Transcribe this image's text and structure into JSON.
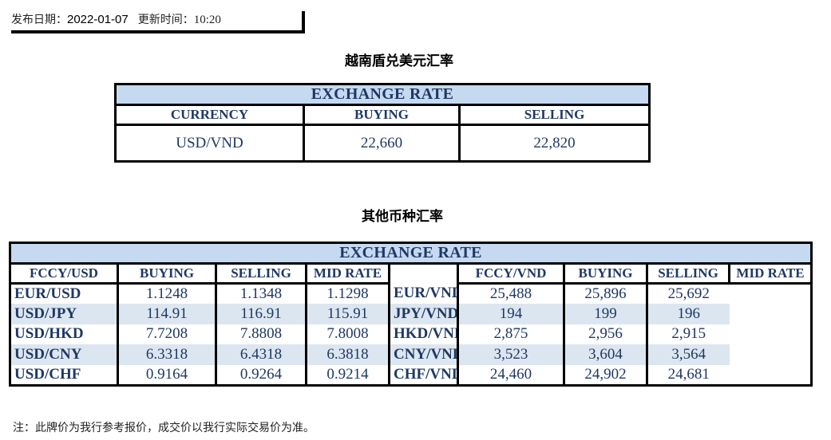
{
  "publish": {
    "date_label": "发布日期：",
    "date": "2022-01-07",
    "time_label": "更新时间：",
    "time": "10:20"
  },
  "section1": {
    "heading": "越南盾兑美元汇率",
    "title": "EXCHANGE RATE",
    "headers": [
      "CURRENCY",
      "BUYING",
      "SELLING"
    ],
    "row": [
      "USD/VND",
      "22,660",
      "22,820"
    ]
  },
  "section2": {
    "heading": "其他币种汇率",
    "title": "EXCHANGE  RATE",
    "headers_usd": [
      "FCCY/USD",
      "BUYING",
      "SELLING",
      "MID RATE"
    ],
    "headers_vnd": [
      "FCCY/VND",
      "BUYING",
      "SELLING",
      "MID RATE"
    ],
    "rows_usd": [
      [
        "EUR/USD",
        "1.1248",
        "1.1348",
        "1.1298"
      ],
      [
        "USD/JPY",
        "114.91",
        "116.91",
        "115.91"
      ],
      [
        "USD/HKD",
        "7.7208",
        "7.8808",
        "7.8008"
      ],
      [
        "USD/CNY",
        "6.3318",
        "6.4318",
        "6.3818"
      ],
      [
        "USD/CHF",
        "0.9164",
        "0.9264",
        "0.9214"
      ]
    ],
    "rows_vnd": [
      [
        "EUR/VND",
        "25,488",
        "25,896",
        "25,692"
      ],
      [
        "JPY/VND",
        "194",
        "199",
        "196"
      ],
      [
        "HKD/VND",
        "2,875",
        "2,956",
        "2,915"
      ],
      [
        "CNY/VND",
        "3,523",
        "3,604",
        "3,564"
      ],
      [
        "CHF/VND",
        "24,460",
        "24,902",
        "24,681"
      ]
    ]
  },
  "note": "注：此牌价为我行参考报价，成交价以我行实际交易价为准。",
  "colors": {
    "title_band": "#c5d9f1",
    "stripe": "#dce6f1",
    "text": "#1f3864"
  }
}
